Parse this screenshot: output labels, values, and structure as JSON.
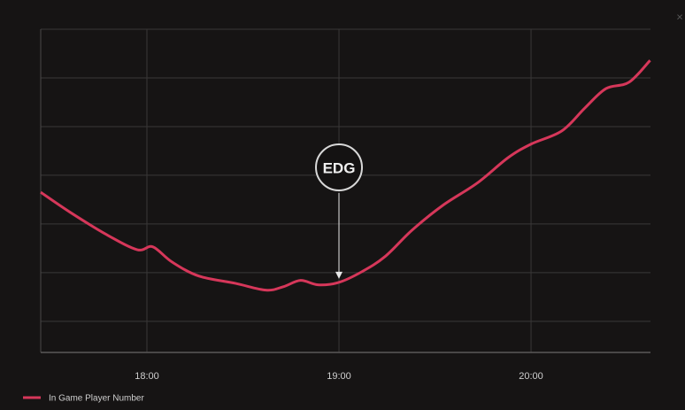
{
  "chart_data": {
    "type": "line",
    "x": [
      17.447,
      17.6,
      17.79,
      17.95,
      18.03,
      18.13,
      18.27,
      18.46,
      18.62,
      18.71,
      18.8,
      18.89,
      19.0,
      19.12,
      19.24,
      19.38,
      19.54,
      19.72,
      19.88,
      20.0,
      20.16,
      20.28,
      20.39,
      20.51,
      20.62
    ],
    "series": [
      {
        "name": "In Game Player Number",
        "color": "#d6375a",
        "values": [
          3.65,
          3.24,
          2.78,
          2.47,
          2.53,
          2.22,
          1.93,
          1.78,
          1.64,
          1.71,
          1.84,
          1.75,
          1.8,
          2.02,
          2.33,
          2.87,
          3.38,
          3.84,
          4.36,
          4.64,
          4.91,
          5.38,
          5.78,
          5.91,
          6.36
        ]
      }
    ],
    "xlim": [
      17.447,
      20.622
    ],
    "xticks": [
      {
        "value": 18,
        "label": "18:00"
      },
      {
        "value": 19,
        "label": "19:00"
      },
      {
        "value": 20,
        "label": "20:00"
      }
    ],
    "ylim": [
      0.36,
      7
    ],
    "ygrid": [
      1,
      2,
      3,
      4,
      5,
      6,
      7
    ],
    "annotation": {
      "text": "EDG",
      "x": 19
    },
    "grid": true
  }
}
